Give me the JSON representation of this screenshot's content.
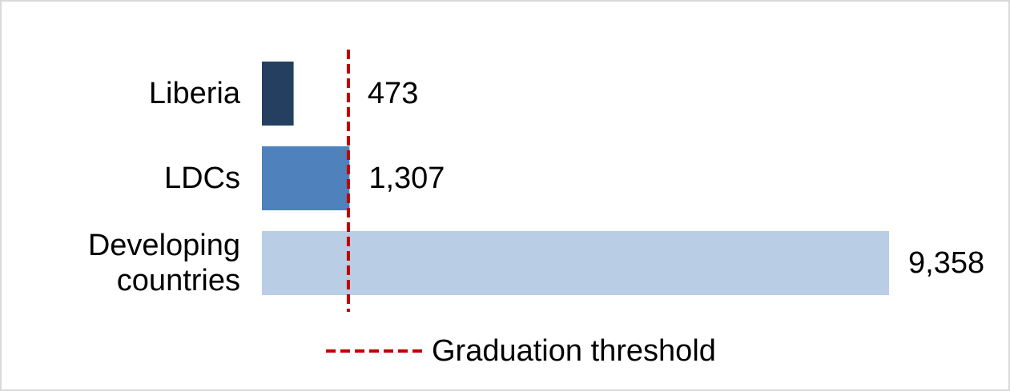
{
  "chart_data": {
    "type": "bar",
    "orientation": "horizontal",
    "categories": [
      "Liberia",
      "LDCs",
      "Developing countries"
    ],
    "values": [
      473,
      1307,
      9358
    ],
    "value_labels": [
      "473",
      "1,307",
      "9,358"
    ],
    "colors": [
      "#243f60",
      "#4f81bd",
      "#b9cde5"
    ],
    "threshold": {
      "name": "Graduation threshold",
      "value": 1290,
      "color": "#c00000"
    }
  }
}
